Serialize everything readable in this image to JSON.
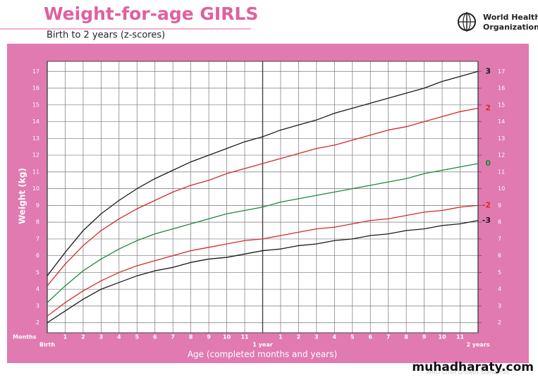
{
  "header": {
    "title": "Weight-for-age GIRLS",
    "subtitle": "Birth to 2 years (z-scores)",
    "org": [
      "World Health",
      "Organization"
    ]
  },
  "footer": {
    "source": "WHO Child Growth Standards",
    "watermark": "muhadharaty.com"
  },
  "chart_data": {
    "type": "line",
    "x_label": "Age (completed months and years)",
    "x_unit_label": "Months",
    "y_label": "Weight (kg)",
    "x": [
      0,
      1,
      2,
      3,
      4,
      5,
      6,
      7,
      8,
      9,
      10,
      11,
      12,
      13,
      14,
      15,
      16,
      17,
      18,
      19,
      20,
      21,
      22,
      23,
      24
    ],
    "xlim": [
      0,
      24
    ],
    "xticks": [
      {
        "value": 0,
        "label": "Birth"
      },
      1,
      2,
      3,
      4,
      5,
      6,
      7,
      8,
      9,
      10,
      11,
      {
        "value": 12,
        "label": "1 year"
      },
      {
        "value": 13,
        "label": "1"
      },
      {
        "value": 14,
        "label": "2"
      },
      {
        "value": 15,
        "label": "3"
      },
      {
        "value": 16,
        "label": "4"
      },
      {
        "value": 17,
        "label": "5"
      },
      {
        "value": 18,
        "label": "6"
      },
      {
        "value": 19,
        "label": "7"
      },
      {
        "value": 20,
        "label": "8"
      },
      {
        "value": 21,
        "label": "9"
      },
      {
        "value": 22,
        "label": "10"
      },
      {
        "value": 23,
        "label": "11"
      },
      {
        "value": 24,
        "label": "2 years"
      }
    ],
    "ylim": [
      1.4,
      17.6
    ],
    "yticks": [
      2,
      3,
      4,
      5,
      6,
      7,
      8,
      9,
      10,
      11,
      12,
      13,
      14,
      15,
      16,
      17
    ],
    "grid": true,
    "series": [
      {
        "name": "3",
        "color": "#1a1a1a",
        "values": [
          4.8,
          6.2,
          7.5,
          8.5,
          9.3,
          10.0,
          10.6,
          11.1,
          11.6,
          12.0,
          12.4,
          12.8,
          13.1,
          13.5,
          13.8,
          14.1,
          14.5,
          14.8,
          15.1,
          15.4,
          15.7,
          16.0,
          16.4,
          16.7,
          17.0
        ]
      },
      {
        "name": "2",
        "color": "#d42a2a",
        "values": [
          4.2,
          5.5,
          6.6,
          7.5,
          8.2,
          8.8,
          9.3,
          9.8,
          10.2,
          10.5,
          10.9,
          11.2,
          11.5,
          11.8,
          12.1,
          12.4,
          12.6,
          12.9,
          13.2,
          13.5,
          13.7,
          14.0,
          14.3,
          14.6,
          14.8
        ]
      },
      {
        "name": "0",
        "color": "#1a8a3a",
        "values": [
          3.2,
          4.2,
          5.1,
          5.8,
          6.4,
          6.9,
          7.3,
          7.6,
          7.9,
          8.2,
          8.5,
          8.7,
          8.9,
          9.2,
          9.4,
          9.6,
          9.8,
          10.0,
          10.2,
          10.4,
          10.6,
          10.9,
          11.1,
          11.3,
          11.5
        ]
      },
      {
        "name": "-2",
        "color": "#d42a2a",
        "values": [
          2.4,
          3.2,
          3.9,
          4.5,
          5.0,
          5.4,
          5.7,
          6.0,
          6.3,
          6.5,
          6.7,
          6.9,
          7.0,
          7.2,
          7.4,
          7.6,
          7.7,
          7.9,
          8.1,
          8.2,
          8.4,
          8.6,
          8.7,
          8.9,
          9.0
        ]
      },
      {
        "name": "-3",
        "color": "#1a1a1a",
        "values": [
          2.0,
          2.7,
          3.4,
          4.0,
          4.4,
          4.8,
          5.1,
          5.3,
          5.6,
          5.8,
          5.9,
          6.1,
          6.3,
          6.4,
          6.6,
          6.7,
          6.9,
          7.0,
          7.2,
          7.3,
          7.5,
          7.6,
          7.8,
          7.9,
          8.1
        ]
      }
    ]
  }
}
